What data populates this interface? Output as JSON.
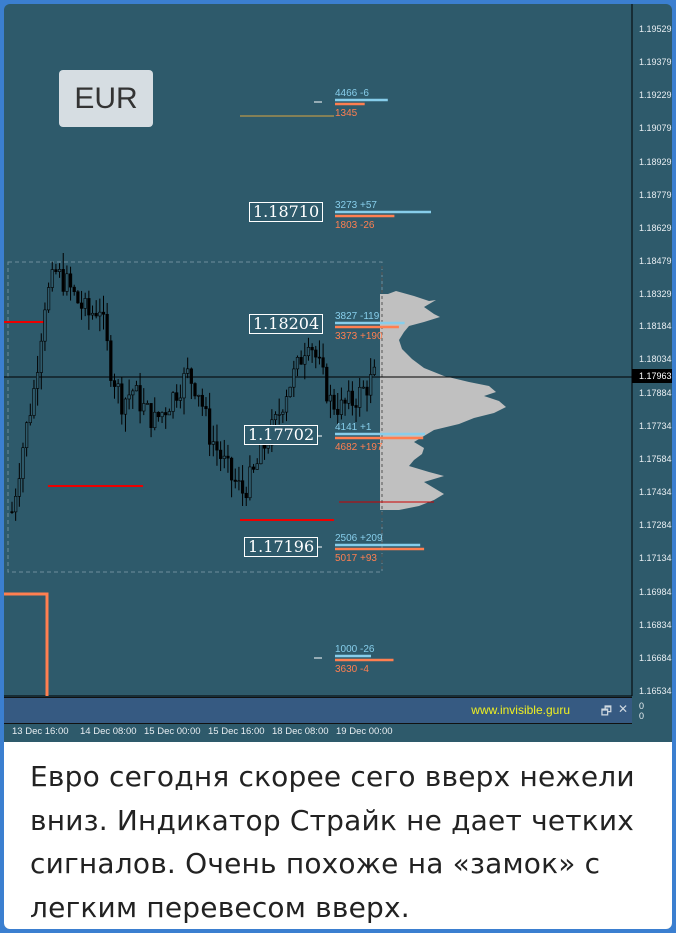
{
  "symbol_badge": "EUR",
  "price_axis": [
    "1.19529",
    "1.19379",
    "1.19229",
    "1.19079",
    "1.18929",
    "1.18779",
    "1.18629",
    "1.18479",
    "1.18329",
    "1.18184",
    "1.18034",
    "1.17884",
    "1.17734",
    "1.17584",
    "1.17434",
    "1.17284",
    "1.17134",
    "1.16984",
    "1.16834",
    "1.16684",
    "1.16534"
  ],
  "current_price": "1.17963",
  "time_axis": [
    "13 Dec 16:00",
    "14 Dec 08:00",
    "15 Dec 00:00",
    "15 Dec 16:00",
    "18 Dec 08:00",
    "19 Dec 00:00"
  ],
  "price_levels": [
    "1.18710",
    "1.18204",
    "1.17702",
    "1.17196"
  ],
  "level_stats": [
    {
      "top": "4466 -6",
      "bottom": "1345"
    },
    {
      "top": "3273 +57",
      "bottom": "1803 -26"
    },
    {
      "top": "3827 -119",
      "bottom": "3373 +190"
    },
    {
      "top": "4141 +1",
      "bottom": "4682 +197"
    },
    {
      "top": "2506 +209",
      "bottom": "5017 +93"
    },
    {
      "top": "1000 -26",
      "bottom": "3630 -4"
    }
  ],
  "indicator_panel": {
    "site": "www.invisible.guru",
    "axis_values": [
      "0",
      "0"
    ]
  },
  "price_path": [
    1.1735,
    1.1765,
    1.179,
    1.183,
    1.1843,
    1.1838,
    1.183,
    1.1824,
    1.1828,
    1.18,
    1.1785,
    1.179,
    1.1782,
    1.1776,
    1.1782,
    1.179,
    1.1797,
    1.179,
    1.177,
    1.176,
    1.175,
    1.1744,
    1.1752,
    1.1765,
    1.1775,
    1.179,
    1.18,
    1.1815,
    1.18,
    1.1785,
    1.1782,
    1.1785,
    1.179,
    1.1796
  ],
  "colors": {
    "background": "#2e5a6b",
    "bull_level": "#87ceeb",
    "bear_level": "#ff7f50",
    "profile": "#c0c0c0"
  },
  "caption": [
    "Евро сегодня скорее сего вверх нежели",
    "вниз. Индикатор Страйк не дает четких",
    "сигналов. Очень похоже на «замок» с",
    "легким перевесом вверх."
  ]
}
